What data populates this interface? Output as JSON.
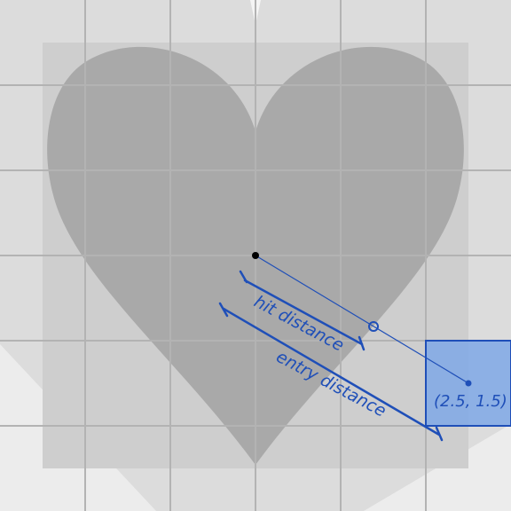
{
  "colors": {
    "background": "#dcdcdc",
    "inner_square": "#cecece",
    "heart_fill": "#a9a9a9",
    "grid_line": "#b3b3b3",
    "annotation_blue": "#1f4fb8",
    "cell_highlight": "#7fa8e6",
    "origin_point": "#000000"
  },
  "labels": {
    "hit_distance": "hit distance",
    "entry_distance": "entry distance",
    "target_cell": "(2.5, 1.5)"
  },
  "icons": {
    "origin": "origin-dot",
    "hit": "hit-circle-marker",
    "target": "target-dot"
  }
}
